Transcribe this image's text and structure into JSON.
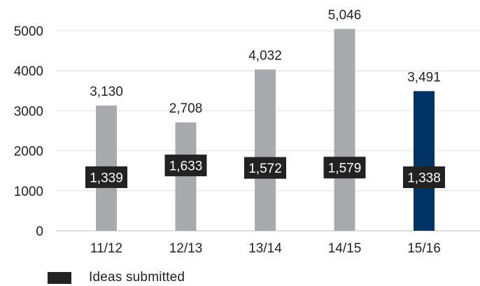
{
  "chart_data": {
    "type": "bar",
    "title": "",
    "xlabel": "",
    "ylabel": "",
    "ylim": [
      0,
      5000
    ],
    "yticks": [
      0,
      1000,
      2000,
      3000,
      4000,
      5000
    ],
    "grid": true,
    "categories": [
      "11/12",
      "12/13",
      "13/14",
      "14/15",
      "15/16"
    ],
    "values": [
      3130,
      2708,
      4032,
      5046,
      3491
    ],
    "value_labels": [
      "3,130",
      "2,708",
      "4,032",
      "5,046",
      "3,491"
    ],
    "inner_values": [
      1339,
      1633,
      1572,
      1579,
      1338
    ],
    "inner_labels": [
      "1,339",
      "1,633",
      "1,572",
      "1,579",
      "1,338"
    ],
    "bar_colors": [
      "#a7abae",
      "#a7abae",
      "#a7abae",
      "#a7abae",
      "#003366"
    ],
    "inner_label_color": "#222222",
    "legend": [
      {
        "name": "Ideas submitted",
        "color": "#222222"
      }
    ],
    "legend_position": "bottom-left"
  }
}
